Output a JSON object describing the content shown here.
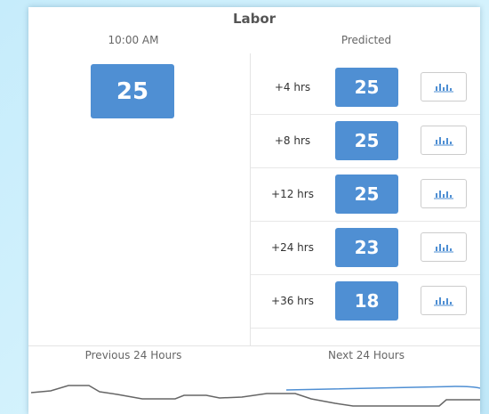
{
  "header": {
    "title": "Labor"
  },
  "current": {
    "time": "10:00 AM",
    "value": 25
  },
  "predicted": {
    "label": "Predicted",
    "rows": [
      {
        "offset": "+4 hrs",
        "value": 25
      },
      {
        "offset": "+8 hrs",
        "value": 25
      },
      {
        "offset": "+12 hrs",
        "value": 25
      },
      {
        "offset": "+24 hrs",
        "value": 23
      },
      {
        "offset": "+36 hrs",
        "value": 18
      }
    ]
  },
  "footer": {
    "previous": "Previous 24 Hours",
    "next": "Next 24 Hours"
  }
}
